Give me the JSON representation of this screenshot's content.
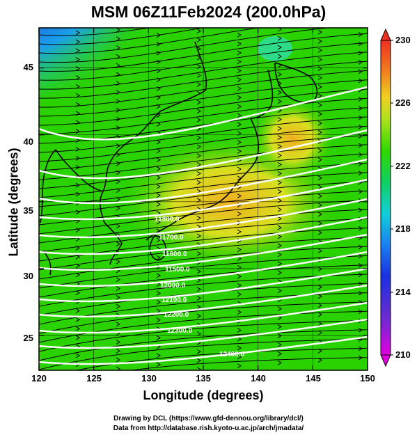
{
  "title": "MSM 06Z11Feb2024 (200.0hPa)",
  "axes": {
    "xlabel": "Longitude (degrees)",
    "ylabel": "Latitude  (degrees)",
    "xticks": [
      "120",
      "125",
      "130",
      "135",
      "140",
      "145",
      "150"
    ],
    "yticks": [
      "25",
      "30",
      "35",
      "40",
      "45"
    ]
  },
  "colorbar": {
    "labels": [
      "230",
      "226",
      "222",
      "218",
      "214",
      "210"
    ],
    "min": 210,
    "max": 230
  },
  "contour_labels": [
    "11800.0",
    "11700.0",
    "11600.0",
    "11500.0",
    "12000.0",
    "12100.0",
    "12200.0",
    "12300.0",
    "12400.0"
  ],
  "credits": {
    "line1": "Drawing by DCL (https://www.gfd-dennou.org/library/dcl/)",
    "line2": "Data from http://database.rish.kyoto-u.ac.jp/arch/jmadata/"
  },
  "colors": {
    "green": "#27d100",
    "yellow": "#e8e02a",
    "orange": "#f0b020",
    "blue": "#1a3be0",
    "magenta": "#e020c0",
    "cyan": "#18c8d0"
  }
}
